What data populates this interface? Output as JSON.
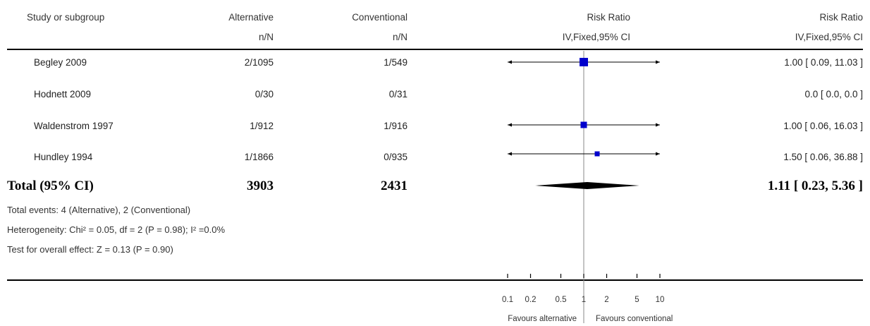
{
  "header": {
    "study_col": "Study or subgroup",
    "alt_col": "Alternative",
    "alt_sub": "n/N",
    "conv_col": "Conventional",
    "conv_sub": "n/N",
    "plot_col": "Risk Ratio",
    "plot_sub": "IV,Fixed,95% CI",
    "est_col": "Risk Ratio",
    "est_sub": "IV,Fixed,95% CI"
  },
  "studies": [
    {
      "name": "Begley 2009",
      "alt": "2/1095",
      "conv": "1/549",
      "rr": 1.0,
      "lo": 0.09,
      "hi": 11.03,
      "label": "1.00 [ 0.09, 11.03 ]",
      "weight": "large"
    },
    {
      "name": "Hodnett 2009",
      "alt": "0/30",
      "conv": "0/31",
      "rr": null,
      "lo": null,
      "hi": null,
      "label": "0.0 [ 0.0, 0.0 ]",
      "weight": "none"
    },
    {
      "name": "Waldenstrom 1997",
      "alt": "1/912",
      "conv": "1/916",
      "rr": 1.0,
      "lo": 0.06,
      "hi": 16.03,
      "label": "1.00 [ 0.06, 16.03 ]",
      "weight": "medium"
    },
    {
      "name": "Hundley 1994",
      "alt": "1/1866",
      "conv": "0/935",
      "rr": 1.5,
      "lo": 0.06,
      "hi": 36.88,
      "label": "1.50 [ 0.06, 36.88 ]",
      "weight": "small"
    }
  ],
  "total": {
    "name": "Total (95% CI)",
    "alt": "3903",
    "conv": "2431",
    "rr": 1.11,
    "lo": 0.23,
    "hi": 5.36,
    "label": "1.11 [ 0.23, 5.36 ]"
  },
  "notes": {
    "events": "Total events: 4 (Alternative), 2 (Conventional)",
    "heterogeneity": "Heterogeneity: Chi² = 0.05, df = 2 (P = 0.98); I² =0.0%",
    "overall": "Test for overall effect: Z = 0.13 (P = 0.90)"
  },
  "chart_data": {
    "type": "scatter",
    "title": "",
    "xlabel": "Risk Ratio",
    "x_scale": "log",
    "xlim": [
      0.1,
      10
    ],
    "ticks": [
      0.1,
      0.2,
      0.5,
      1,
      2,
      5,
      10
    ],
    "tick_labels": [
      "0.1",
      "0.2",
      "0.5",
      "1",
      "2",
      "5",
      "10"
    ],
    "favours_left": "Favours alternative",
    "favours_right": "Favours conventional",
    "marker_color": "#0000cc"
  }
}
